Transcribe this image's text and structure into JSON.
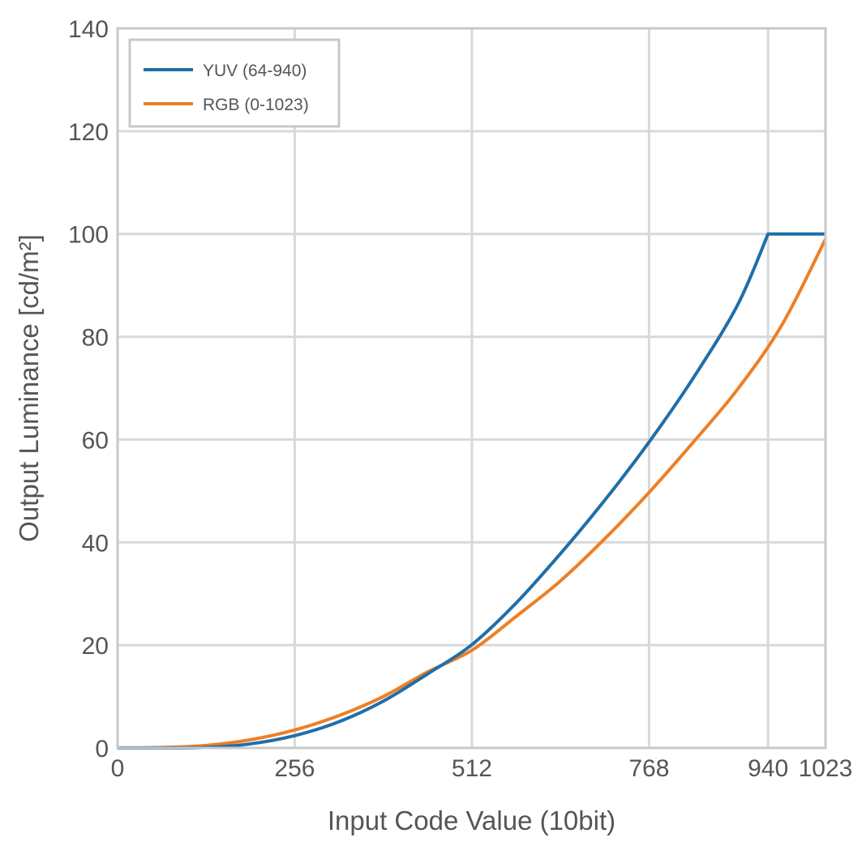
{
  "chart_data": {
    "type": "line",
    "title": "",
    "xlabel": "Input Code Value (10bit)",
    "ylabel": "Output Luminance [cd/m²]",
    "xlim": [
      0,
      1023
    ],
    "ylim": [
      0,
      140
    ],
    "x_ticks": [
      0,
      256,
      512,
      768,
      940,
      1023
    ],
    "x_tick_labels": [
      "0",
      "256",
      "512",
      "768",
      "940",
      "1023"
    ],
    "y_ticks": [
      0,
      20,
      40,
      60,
      80,
      100,
      120,
      140
    ],
    "y_tick_labels": [
      "0",
      "20",
      "40",
      "60",
      "80",
      "100",
      "120",
      "140"
    ],
    "grid": true,
    "legend_position": "top-left",
    "series": [
      {
        "name": "YUV (64-940)",
        "color": "#1f6ea8",
        "x": [
          0,
          64,
          128,
          192,
          256,
          320,
          384,
          448,
          512,
          576,
          640,
          704,
          768,
          832,
          896,
          940,
          1023
        ],
        "y": [
          0,
          0,
          0.1,
          0.8,
          2.4,
          5.1,
          9.1,
          14.4,
          20.1,
          28.2,
          37.8,
          48.2,
          59.5,
          72.0,
          86.2,
          100,
          100
        ]
      },
      {
        "name": "RGB (0-1023)",
        "color": "#ee7f24",
        "x": [
          0,
          64,
          128,
          192,
          256,
          320,
          384,
          448,
          512,
          576,
          640,
          704,
          768,
          832,
          896,
          960,
          1023
        ],
        "y": [
          0,
          0.1,
          0.5,
          1.6,
          3.5,
          6.3,
          10.0,
          14.8,
          19.0,
          25.6,
          32.5,
          40.7,
          49.7,
          59.5,
          69.8,
          82.3,
          99.0
        ]
      }
    ]
  }
}
